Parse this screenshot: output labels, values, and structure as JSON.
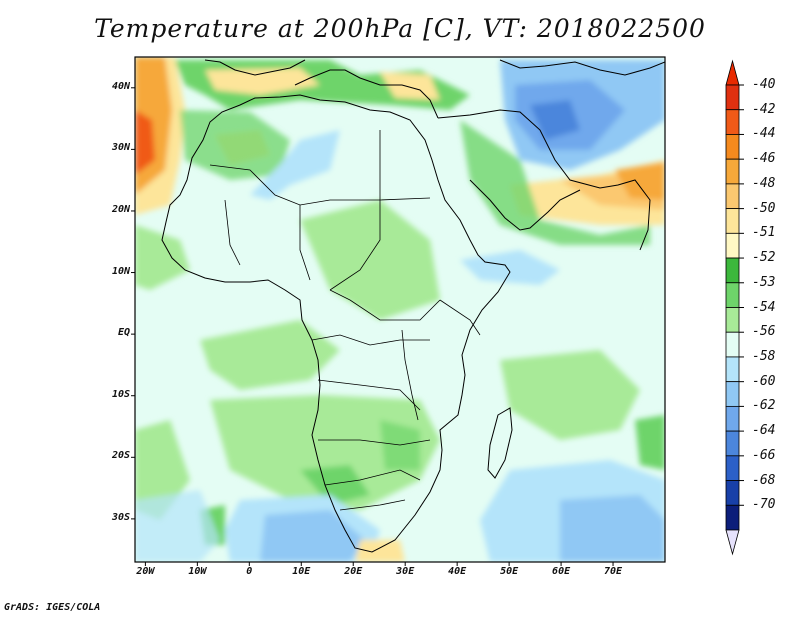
{
  "title": "Temperature at 200hPa [C], VT: 2018022500",
  "footer": "GrADS: IGES/COLA",
  "map": {
    "lat_labels": [
      "40N",
      "30N",
      "20N",
      "10N",
      "EQ",
      "10S",
      "20S",
      "30S"
    ],
    "lat_values": [
      40,
      30,
      20,
      10,
      0,
      -10,
      -20,
      -30
    ],
    "lon_labels": [
      "20W",
      "10W",
      "0",
      "10E",
      "20E",
      "30E",
      "40E",
      "50E",
      "60E",
      "70E"
    ],
    "lon_values": [
      -20,
      -10,
      0,
      10,
      20,
      30,
      40,
      50,
      60,
      70
    ],
    "lon_range": [
      -22,
      80
    ],
    "lat_range": [
      -37,
      45
    ]
  },
  "colorbar": {
    "labels": [
      "-40",
      "-42",
      "-44",
      "-46",
      "-48",
      "-50",
      "-51",
      "-52",
      "-53",
      "-54",
      "-56",
      "-58",
      "-60",
      "-62",
      "-64",
      "-66",
      "-68",
      "-70"
    ],
    "colors": [
      "#e03010",
      "#f05a18",
      "#f58a1e",
      "#f6a83a",
      "#fbc870",
      "#fde59a",
      "#fff8c4",
      "#3cb83c",
      "#6ed46a",
      "#a8ea98",
      "#e4fdf4",
      "#b4e4fa",
      "#90c8f4",
      "#70a8ec",
      "#4c86dc",
      "#2c60c8",
      "#1840a8",
      "#0c1e7a"
    ],
    "top_arrow_color": "#e82a00",
    "bottom_arrow_color": "#e6e2fc"
  }
}
